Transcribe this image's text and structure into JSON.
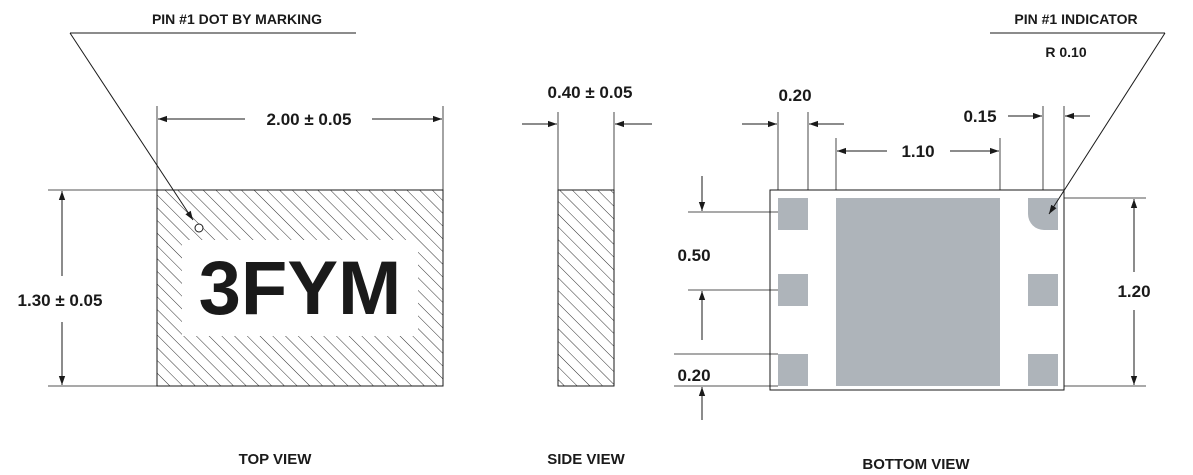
{
  "colors": {
    "line": "#1a1a1a",
    "pad_fill": "#aeb4ba",
    "hatch": "#1a1a1a",
    "background": "#ffffff"
  },
  "callouts": {
    "pin1_dot": "PIN #1 DOT BY MARKING",
    "pin1_indicator": "PIN #1 INDICATOR",
    "pin1_radius": "R 0.10"
  },
  "top_view": {
    "title": "TOP VIEW",
    "marking": "3FYM",
    "width_dim": "2.00 ± 0.05",
    "height_dim": "1.30 ± 0.05"
  },
  "side_view": {
    "title": "SIDE VIEW",
    "thickness_dim": "0.40 ± 0.05"
  },
  "bottom_view": {
    "title": "BOTTOM VIEW",
    "pad_width_dim": "0.20",
    "center_pad_width_dim": "1.10",
    "right_pad_offset_dim": "0.15",
    "pitch_dim": "0.50",
    "pad_height_dim": "0.20",
    "center_pad_height_dim": "1.20"
  }
}
